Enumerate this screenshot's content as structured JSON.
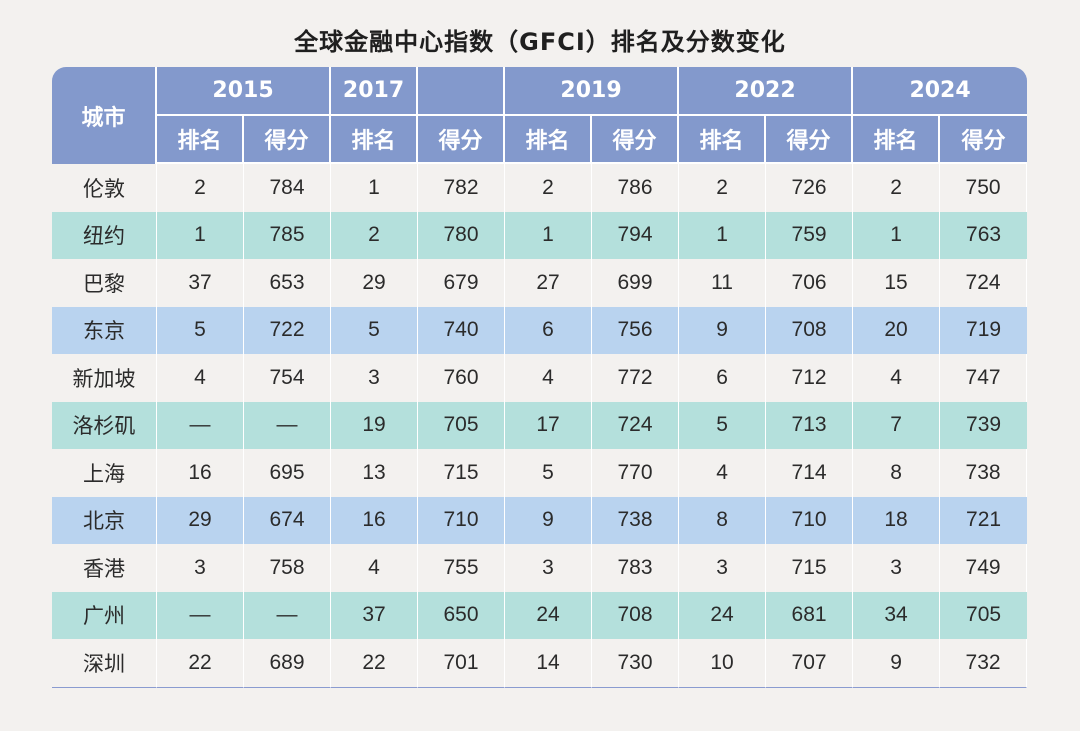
{
  "chart_data": {
    "type": "table",
    "title": "全球金融中心指数（GFCI）排名及分数变化",
    "city_header": "城市",
    "year_headers": [
      "2015",
      "2017",
      "",
      "2019",
      "2022",
      "2024"
    ],
    "sub_headers": [
      "排名",
      "得分",
      "排名",
      "得分",
      "排名",
      "得分",
      "排名",
      "得分",
      "排名",
      "得分"
    ],
    "rows": [
      {
        "city": "伦敦",
        "values": [
          "2",
          "784",
          "1",
          "782",
          "2",
          "786",
          "2",
          "726",
          "2",
          "750"
        ],
        "color": "#f3f1ef"
      },
      {
        "city": "纽约",
        "values": [
          "1",
          "785",
          "2",
          "780",
          "1",
          "794",
          "1",
          "759",
          "1",
          "763"
        ],
        "color": "#b4e0dc"
      },
      {
        "city": "巴黎",
        "values": [
          "37",
          "653",
          "29",
          "679",
          "27",
          "699",
          "11",
          "706",
          "15",
          "724"
        ],
        "color": "#f3f1ef"
      },
      {
        "city": "东京",
        "values": [
          "5",
          "722",
          "5",
          "740",
          "6",
          "756",
          "9",
          "708",
          "20",
          "719"
        ],
        "color": "#b9d3ef"
      },
      {
        "city": "新加坡",
        "values": [
          "4",
          "754",
          "3",
          "760",
          "4",
          "772",
          "6",
          "712",
          "4",
          "747"
        ],
        "color": "#f3f1ef"
      },
      {
        "city": "洛杉矶",
        "values": [
          "—",
          "—",
          "19",
          "705",
          "17",
          "724",
          "5",
          "713",
          "7",
          "739"
        ],
        "color": "#b4e0dc"
      },
      {
        "city": "上海",
        "values": [
          "16",
          "695",
          "13",
          "715",
          "5",
          "770",
          "4",
          "714",
          "8",
          "738"
        ],
        "color": "#f3f1ef"
      },
      {
        "city": "北京",
        "values": [
          "29",
          "674",
          "16",
          "710",
          "9",
          "738",
          "8",
          "710",
          "18",
          "721"
        ],
        "color": "#b9d3ef"
      },
      {
        "city": "香港",
        "values": [
          "3",
          "758",
          "4",
          "755",
          "3",
          "783",
          "3",
          "715",
          "3",
          "749"
        ],
        "color": "#f3f1ef"
      },
      {
        "city": "广州",
        "values": [
          "—",
          "—",
          "37",
          "650",
          "24",
          "708",
          "24",
          "681",
          "34",
          "705"
        ],
        "color": "#b4e0dc"
      },
      {
        "city": "深圳",
        "values": [
          "22",
          "689",
          "22",
          "701",
          "14",
          "730",
          "10",
          "707",
          "9",
          "732"
        ],
        "color": "#f3f1ef"
      }
    ]
  }
}
